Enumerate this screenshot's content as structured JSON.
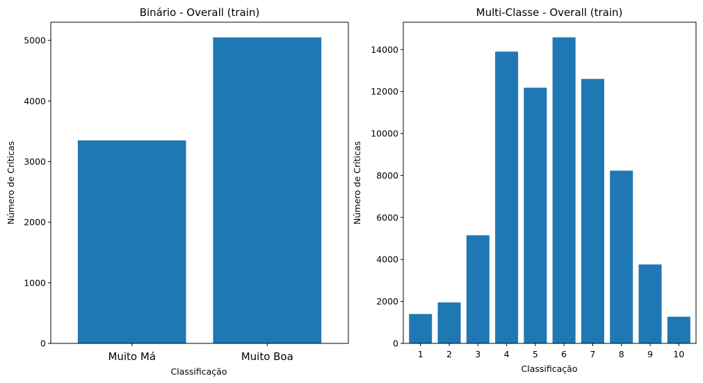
{
  "chart_data": [
    {
      "type": "bar",
      "title": "Binário - Overall (train)",
      "xlabel": "Classificação",
      "ylabel": "Número de Críticas",
      "categories": [
        "Muito Má",
        "Muito Boa"
      ],
      "values": [
        3350,
        5050
      ],
      "ylim": [
        0,
        5300
      ],
      "yticks": [
        0,
        1000,
        2000,
        3000,
        4000,
        5000
      ],
      "color": "#1f77b4",
      "grid": false
    },
    {
      "type": "bar",
      "title": "Multi-Classe - Overall (train)",
      "xlabel": "Classificação",
      "ylabel": "Número de Críticas",
      "categories": [
        "1",
        "2",
        "3",
        "4",
        "5",
        "6",
        "7",
        "8",
        "9",
        "10"
      ],
      "values": [
        1400,
        1950,
        5150,
        13900,
        12180,
        14580,
        12600,
        8230,
        3760,
        1270
      ],
      "ylim": [
        0,
        15300
      ],
      "yticks": [
        0,
        2000,
        4000,
        6000,
        8000,
        10000,
        12000,
        14000
      ],
      "color": "#1f77b4",
      "grid": false
    }
  ]
}
